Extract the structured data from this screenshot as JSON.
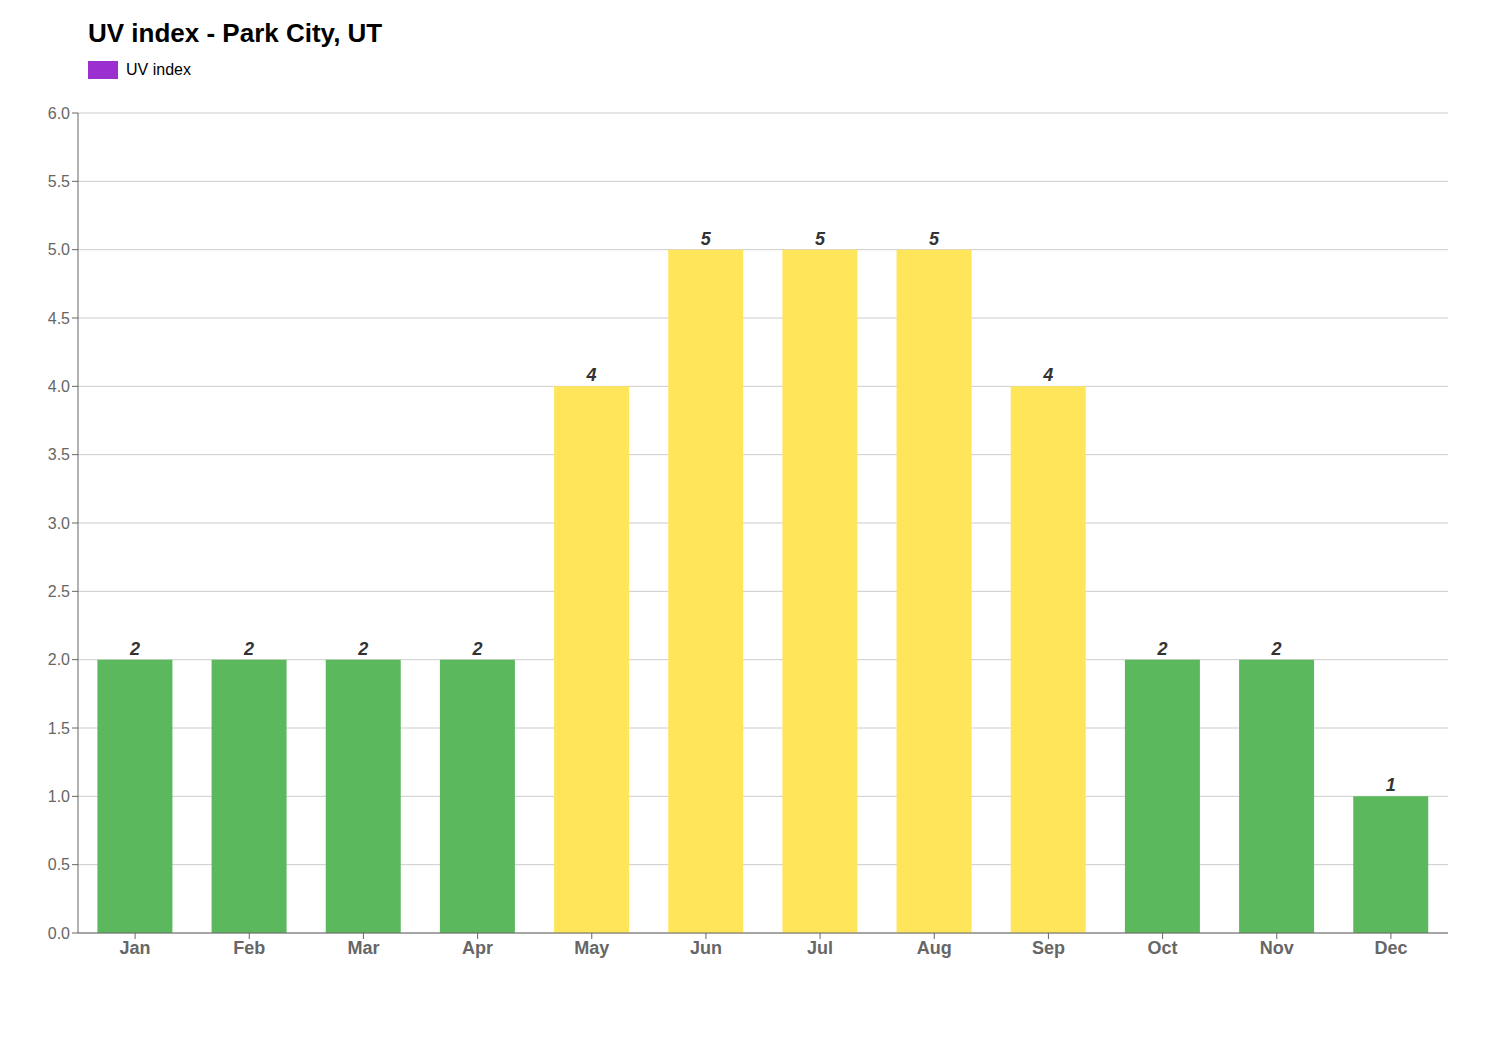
{
  "chart_data": {
    "type": "bar",
    "title": "UV index - Park City, UT",
    "categories": [
      "Jan",
      "Feb",
      "Mar",
      "Apr",
      "May",
      "Jun",
      "Jul",
      "Aug",
      "Sep",
      "Oct",
      "Nov",
      "Dec"
    ],
    "series": [
      {
        "name": "UV index",
        "color": "#9b30d0",
        "colors": [
          "#5cb85c",
          "#5cb85c",
          "#5cb85c",
          "#5cb85c",
          "#ffe55a",
          "#ffe55a",
          "#ffe55a",
          "#ffe55a",
          "#ffe55a",
          "#5cb85c",
          "#5cb85c",
          "#5cb85c"
        ],
        "values": [
          2,
          2,
          2,
          2,
          4,
          5,
          5,
          5,
          4,
          2,
          2,
          1
        ]
      }
    ],
    "ylim": [
      0,
      6.0
    ],
    "yticks": [
      {
        "value": 0,
        "label": "0.0"
      },
      0.5,
      {
        "value": 1,
        "label": "1.0"
      },
      1.5,
      {
        "value": 2,
        "label": "2.0"
      },
      2.5,
      {
        "value": 3,
        "label": "3.0"
      },
      3.5,
      {
        "value": 4,
        "label": "4.0"
      },
      4.5,
      {
        "value": 5,
        "label": "5.0"
      },
      5.5,
      {
        "value": 6,
        "label": "6.0"
      }
    ],
    "grid": true,
    "legend": "upper left",
    "data_labels": true
  }
}
